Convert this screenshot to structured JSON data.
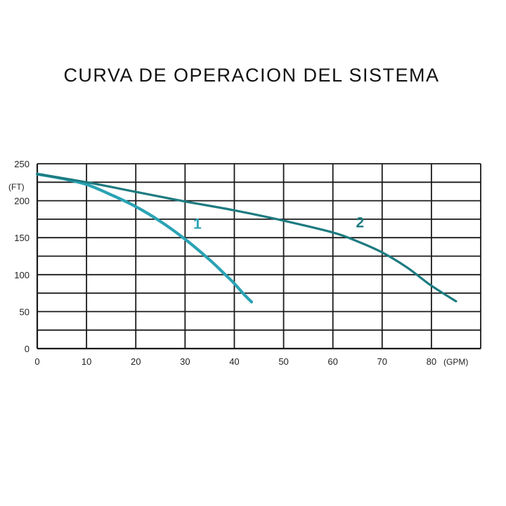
{
  "chart_data": {
    "type": "line",
    "title": "CURVA DE OPERACION DEL SISTEMA",
    "x_unit": "(GPM)",
    "y_unit": "(FT)",
    "xlim": [
      0,
      90
    ],
    "ylim": [
      0,
      250
    ],
    "x_ticks": [
      {
        "value": 0,
        "label": "0"
      },
      {
        "value": 10,
        "label": "10"
      },
      {
        "value": 20,
        "label": "20"
      },
      {
        "value": 30,
        "label": "30"
      },
      {
        "value": 40,
        "label": "40"
      },
      {
        "value": 50,
        "label": "50"
      },
      {
        "value": 60,
        "label": "60"
      },
      {
        "value": 70,
        "label": "70"
      },
      {
        "value": 80,
        "label": "80"
      }
    ],
    "y_ticks": [
      {
        "value": 0,
        "label": "0"
      },
      {
        "value": 50,
        "label": "50"
      },
      {
        "value": 100,
        "label": "100"
      },
      {
        "value": 150,
        "label": "150"
      },
      {
        "value": 200,
        "label": "200"
      },
      {
        "value": 250,
        "label": "250"
      }
    ],
    "x_grid": [
      0,
      10,
      20,
      30,
      40,
      50,
      60,
      70,
      80,
      90
    ],
    "y_grid": [
      0,
      25,
      50,
      75,
      100,
      125,
      150,
      175,
      200,
      225,
      250
    ],
    "grid": true,
    "series": [
      {
        "name": "1",
        "color": "#2aa3b4",
        "x": [
          0,
          5,
          10,
          15,
          20,
          25,
          30,
          35,
          38,
          40,
          42,
          43.5
        ],
        "y": [
          236,
          230,
          222,
          208,
          192,
          172,
          148,
          120,
          101,
          88,
          73,
          63
        ]
      },
      {
        "name": "2",
        "color": "#1d7b80",
        "x": [
          0,
          10,
          20,
          30,
          40,
          50,
          60,
          65,
          70,
          75,
          80,
          85
        ],
        "y": [
          236,
          225,
          212,
          199,
          187,
          173,
          157,
          145,
          130,
          110,
          85,
          64
        ]
      }
    ],
    "annotations": [
      {
        "text": "1",
        "x": 32.5,
        "y": 162,
        "color": "#2aa3b4"
      },
      {
        "text": "2",
        "x": 65.5,
        "y": 164,
        "color": "#1d7b80"
      }
    ]
  }
}
